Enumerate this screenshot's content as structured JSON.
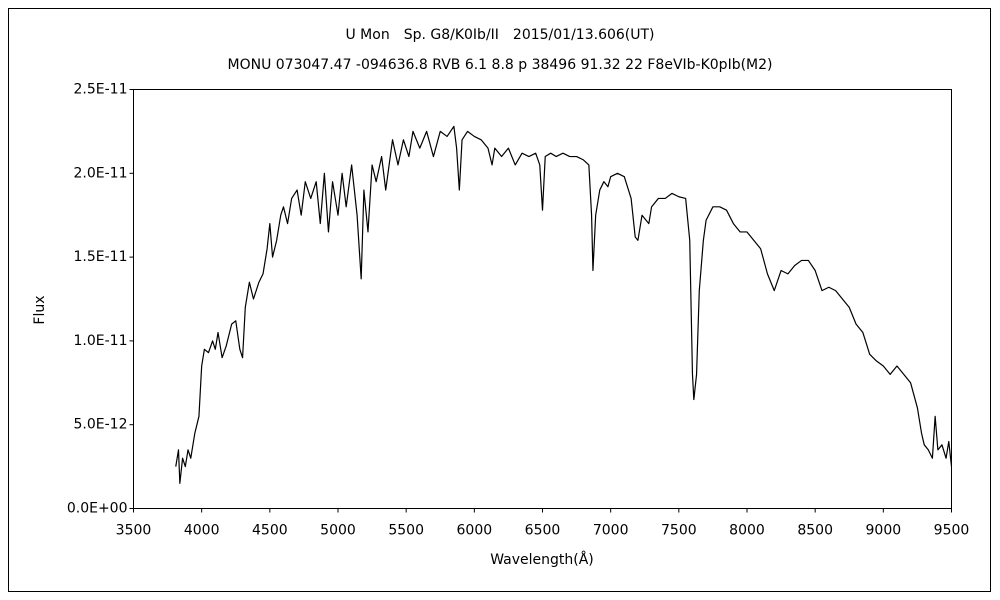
{
  "chart_data": {
    "type": "line",
    "title": "U Mon　Sp. G8/K0Ib/II　2015/01/13.606(UT)",
    "subtitle": "MONU 073047.47 -094636.8 RVB 6.1 8.8 p 38496 91.32 22 F8eVIb-K0pIb(M2)",
    "x_label": "Wavelength(Å)",
    "y_label": "Flux",
    "color": "#000000",
    "grid": false,
    "xlim": [
      3500,
      9500
    ],
    "xticks": [
      3500,
      4000,
      4500,
      5000,
      5500,
      6000,
      6500,
      7000,
      7500,
      8000,
      8500,
      9000,
      9500
    ],
    "ylim": [
      0,
      2.5e-11
    ],
    "yticks": [
      {
        "value": 0,
        "label": "0.0E+00"
      },
      {
        "value": 5e-12,
        "label": "5.0E-12"
      },
      {
        "value": 1e-11,
        "label": "1.0E-11"
      },
      {
        "value": 1.5e-11,
        "label": "1.5E-11"
      },
      {
        "value": 2e-11,
        "label": "2.0E-11"
      },
      {
        "value": 2.5e-11,
        "label": "2.5E-11"
      }
    ],
    "x": [
      3810,
      3830,
      3840,
      3860,
      3880,
      3900,
      3920,
      3950,
      3980,
      4000,
      4020,
      4050,
      4080,
      4100,
      4120,
      4150,
      4180,
      4220,
      4250,
      4280,
      4300,
      4320,
      4350,
      4380,
      4420,
      4450,
      4480,
      4500,
      4520,
      4550,
      4580,
      4600,
      4630,
      4660,
      4700,
      4730,
      4760,
      4800,
      4840,
      4870,
      4900,
      4930,
      4960,
      5000,
      5030,
      5060,
      5100,
      5140,
      5170,
      5190,
      5220,
      5250,
      5280,
      5320,
      5350,
      5400,
      5440,
      5480,
      5520,
      5550,
      5600,
      5650,
      5700,
      5750,
      5800,
      5850,
      5870,
      5890,
      5910,
      5950,
      6000,
      6050,
      6100,
      6130,
      6150,
      6200,
      6250,
      6300,
      6350,
      6400,
      6450,
      6480,
      6500,
      6520,
      6560,
      6600,
      6650,
      6700,
      6750,
      6800,
      6840,
      6860,
      6870,
      6890,
      6920,
      6950,
      6980,
      7000,
      7050,
      7100,
      7150,
      7180,
      7200,
      7230,
      7280,
      7300,
      7350,
      7400,
      7450,
      7500,
      7550,
      7580,
      7600,
      7610,
      7630,
      7650,
      7680,
      7700,
      7750,
      7800,
      7850,
      7900,
      7950,
      8000,
      8050,
      8100,
      8150,
      8200,
      8250,
      8300,
      8350,
      8400,
      8450,
      8500,
      8550,
      8600,
      8650,
      8700,
      8750,
      8800,
      8850,
      8900,
      8950,
      9000,
      9050,
      9100,
      9150,
      9200,
      9250,
      9280,
      9300,
      9330,
      9360,
      9380,
      9400,
      9430,
      9460,
      9480,
      9500
    ],
    "values": [
      2.5e-12,
      3.5e-12,
      1.5e-12,
      3e-12,
      2.5e-12,
      3.5e-12,
      3e-12,
      4.5e-12,
      5.5e-12,
      8.5e-12,
      9.5e-12,
      9.3e-12,
      1e-11,
      9.5e-12,
      1.05e-11,
      9e-12,
      9.7e-12,
      1.1e-11,
      1.12e-11,
      9.5e-12,
      9e-12,
      1.2e-11,
      1.35e-11,
      1.25e-11,
      1.35e-11,
      1.4e-11,
      1.55e-11,
      1.7e-11,
      1.5e-11,
      1.6e-11,
      1.75e-11,
      1.8e-11,
      1.7e-11,
      1.85e-11,
      1.9e-11,
      1.75e-11,
      1.95e-11,
      1.85e-11,
      1.95e-11,
      1.7e-11,
      2e-11,
      1.65e-11,
      1.95e-11,
      1.75e-11,
      2e-11,
      1.8e-11,
      2.05e-11,
      1.75e-11,
      1.37e-11,
      1.9e-11,
      1.65e-11,
      2.05e-11,
      1.95e-11,
      2.1e-11,
      1.9e-11,
      2.2e-11,
      2.05e-11,
      2.2e-11,
      2.1e-11,
      2.25e-11,
      2.15e-11,
      2.25e-11,
      2.1e-11,
      2.25e-11,
      2.22e-11,
      2.28e-11,
      2.15e-11,
      1.9e-11,
      2.2e-11,
      2.25e-11,
      2.22e-11,
      2.2e-11,
      2.15e-11,
      2.05e-11,
      2.15e-11,
      2.1e-11,
      2.15e-11,
      2.05e-11,
      2.12e-11,
      2.1e-11,
      2.12e-11,
      2.05e-11,
      1.78e-11,
      2.1e-11,
      2.12e-11,
      2.1e-11,
      2.12e-11,
      2.1e-11,
      2.1e-11,
      2.08e-11,
      2.05e-11,
      1.75e-11,
      1.42e-11,
      1.75e-11,
      1.9e-11,
      1.95e-11,
      1.92e-11,
      1.98e-11,
      2e-11,
      1.98e-11,
      1.85e-11,
      1.62e-11,
      1.6e-11,
      1.75e-11,
      1.7e-11,
      1.8e-11,
      1.85e-11,
      1.85e-11,
      1.88e-11,
      1.86e-11,
      1.85e-11,
      1.6e-11,
      8e-12,
      6.5e-12,
      8e-12,
      1.3e-11,
      1.6e-11,
      1.72e-11,
      1.8e-11,
      1.8e-11,
      1.78e-11,
      1.7e-11,
      1.65e-11,
      1.65e-11,
      1.6e-11,
      1.55e-11,
      1.4e-11,
      1.3e-11,
      1.42e-11,
      1.4e-11,
      1.45e-11,
      1.48e-11,
      1.48e-11,
      1.42e-11,
      1.3e-11,
      1.32e-11,
      1.3e-11,
      1.25e-11,
      1.2e-11,
      1.1e-11,
      1.05e-11,
      9.2e-12,
      8.8e-12,
      8.5e-12,
      8e-12,
      8.5e-12,
      8e-12,
      7.5e-12,
      6e-12,
      4.5e-12,
      3.8e-12,
      3.5e-12,
      3e-12,
      5.5e-12,
      3.5e-12,
      3.8e-12,
      3e-12,
      4e-12,
      2.5e-12
    ]
  }
}
